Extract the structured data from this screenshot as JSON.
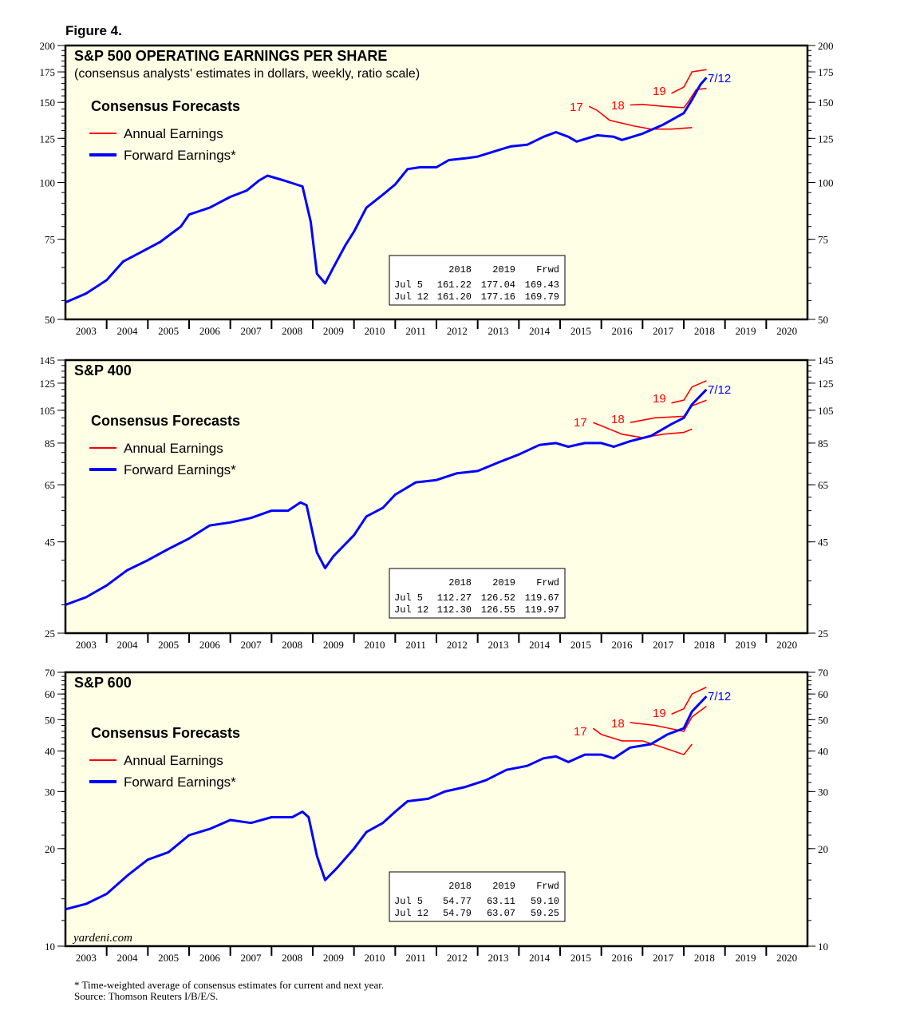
{
  "figure_label": "Figure 4.",
  "watermark": "yardeni.com",
  "footnote": "* Time-weighted average of consensus estimates for current and next year.",
  "source": "Source: Thomson Reuters I/B/E/S.",
  "colors": {
    "annual": "#ff0000",
    "forward": "#0000ff",
    "background": "#ffffe6"
  },
  "chart_data": [
    {
      "type": "line",
      "title": "S&P 500 OPERATING EARNINGS PER SHARE",
      "subtitle": "(consensus analysts' estimates in dollars, weekly, ratio scale)",
      "legend_title": "Consensus Forecasts",
      "legend": [
        "Annual Earnings",
        "Forward Earnings*"
      ],
      "legend_placement": "top-left",
      "y_scale": "log",
      "ylim": [
        50,
        200
      ],
      "yticks": [
        50,
        75,
        100,
        125,
        150,
        175,
        200
      ],
      "xlim": [
        2003,
        2021
      ],
      "xtick_labels": [
        "2003",
        "2004",
        "2005",
        "2006",
        "2007",
        "2008",
        "2009",
        "2010",
        "2011",
        "2012",
        "2013",
        "2014",
        "2015",
        "2016",
        "2017",
        "2018",
        "2019",
        "2020"
      ],
      "annotations": {
        "a17": "17",
        "a18": "18",
        "a19": "19",
        "latest": "7/12"
      },
      "table": {
        "header": [
          "",
          "2018",
          "2019",
          "Frwd"
        ],
        "rows": [
          [
            "Jul  5",
            "161.22",
            "177.04",
            "169.43"
          ],
          [
            "Jul 12",
            "161.20",
            "177.16",
            "169.79"
          ]
        ]
      },
      "forward": [
        [
          2003.0,
          54.5
        ],
        [
          2003.5,
          57
        ],
        [
          2004.0,
          61
        ],
        [
          2004.4,
          67
        ],
        [
          2004.8,
          70
        ],
        [
          2005.3,
          74
        ],
        [
          2005.8,
          80
        ],
        [
          2006.0,
          85
        ],
        [
          2006.5,
          88
        ],
        [
          2007.0,
          93
        ],
        [
          2007.4,
          96
        ],
        [
          2007.7,
          101
        ],
        [
          2007.9,
          103.5
        ],
        [
          2008.3,
          101
        ],
        [
          2008.6,
          99
        ],
        [
          2008.75,
          98
        ],
        [
          2008.95,
          82
        ],
        [
          2009.1,
          63
        ],
        [
          2009.3,
          60
        ],
        [
          2009.5,
          65
        ],
        [
          2009.8,
          73
        ],
        [
          2010.0,
          78
        ],
        [
          2010.3,
          88
        ],
        [
          2010.7,
          94
        ],
        [
          2011.0,
          99
        ],
        [
          2011.3,
          107
        ],
        [
          2011.6,
          108
        ],
        [
          2012.0,
          108
        ],
        [
          2012.3,
          112
        ],
        [
          2012.7,
          113
        ],
        [
          2013.0,
          114
        ],
        [
          2013.4,
          117
        ],
        [
          2013.8,
          120
        ],
        [
          2014.2,
          121
        ],
        [
          2014.6,
          126
        ],
        [
          2014.9,
          129
        ],
        [
          2015.2,
          126
        ],
        [
          2015.4,
          123
        ],
        [
          2015.9,
          127
        ],
        [
          2016.3,
          126
        ],
        [
          2016.5,
          124
        ],
        [
          2017.0,
          128
        ],
        [
          2017.5,
          134
        ],
        [
          2018.0,
          142
        ],
        [
          2018.2,
          152
        ],
        [
          2018.4,
          164
        ],
        [
          2018.55,
          170
        ]
      ],
      "annual_2017": [
        [
          2015.7,
          147
        ],
        [
          2015.9,
          144
        ],
        [
          2016.2,
          137
        ],
        [
          2016.8,
          133
        ],
        [
          2017.2,
          131
        ],
        [
          2017.7,
          131
        ],
        [
          2018.2,
          132
        ]
      ],
      "annual_2018": [
        [
          2016.7,
          148
        ],
        [
          2017.0,
          148.5
        ],
        [
          2017.5,
          147
        ],
        [
          2018.0,
          146
        ],
        [
          2018.1,
          150
        ],
        [
          2018.3,
          160
        ],
        [
          2018.55,
          161
        ]
      ],
      "annual_2019": [
        [
          2017.7,
          157
        ],
        [
          2018.0,
          162
        ],
        [
          2018.2,
          175
        ],
        [
          2018.55,
          177
        ]
      ]
    },
    {
      "type": "line",
      "title": "S&P 400",
      "legend_title": "Consensus Forecasts",
      "legend": [
        "Annual Earnings",
        "Forward Earnings*"
      ],
      "legend_placement": "top-left",
      "y_scale": "log",
      "ylim": [
        25,
        145
      ],
      "yticks": [
        25,
        45,
        65,
        85,
        105,
        125,
        145
      ],
      "xlim": [
        2003,
        2021
      ],
      "xtick_labels": [
        "2003",
        "2004",
        "2005",
        "2006",
        "2007",
        "2008",
        "2009",
        "2010",
        "2011",
        "2012",
        "2013",
        "2014",
        "2015",
        "2016",
        "2017",
        "2018",
        "2019",
        "2020"
      ],
      "annotations": {
        "a17": "17",
        "a18": "18",
        "a19": "19",
        "latest": "7/12"
      },
      "table": {
        "header": [
          "",
          "2018",
          "2019",
          "Frwd"
        ],
        "rows": [
          [
            "Jul  5",
            "112.27",
            "126.52",
            "119.67"
          ],
          [
            "Jul 12",
            "112.30",
            "126.55",
            "119.97"
          ]
        ]
      },
      "forward": [
        [
          2003.0,
          30
        ],
        [
          2003.5,
          31.5
        ],
        [
          2004.0,
          34
        ],
        [
          2004.5,
          37.5
        ],
        [
          2005.0,
          40
        ],
        [
          2005.5,
          43
        ],
        [
          2006.0,
          46
        ],
        [
          2006.5,
          50
        ],
        [
          2007.0,
          51
        ],
        [
          2007.5,
          52.5
        ],
        [
          2008.0,
          55
        ],
        [
          2008.4,
          55
        ],
        [
          2008.7,
          58
        ],
        [
          2008.85,
          57
        ],
        [
          2009.1,
          42
        ],
        [
          2009.3,
          38
        ],
        [
          2009.5,
          41
        ],
        [
          2010.0,
          47
        ],
        [
          2010.3,
          53
        ],
        [
          2010.7,
          56
        ],
        [
          2011.0,
          61
        ],
        [
          2011.5,
          66
        ],
        [
          2012.0,
          67
        ],
        [
          2012.5,
          70
        ],
        [
          2013.0,
          71
        ],
        [
          2013.5,
          75
        ],
        [
          2014.0,
          79
        ],
        [
          2014.5,
          84
        ],
        [
          2014.9,
          85
        ],
        [
          2015.2,
          83
        ],
        [
          2015.6,
          85
        ],
        [
          2016.0,
          85
        ],
        [
          2016.3,
          83
        ],
        [
          2016.7,
          86
        ],
        [
          2017.2,
          89
        ],
        [
          2017.7,
          96
        ],
        [
          2018.0,
          100
        ],
        [
          2018.2,
          109
        ],
        [
          2018.55,
          120
        ]
      ],
      "annual_2017": [
        [
          2015.8,
          97
        ],
        [
          2016.0,
          95
        ],
        [
          2016.5,
          90
        ],
        [
          2017.0,
          88
        ],
        [
          2017.5,
          90
        ],
        [
          2018.0,
          91
        ],
        [
          2018.2,
          93
        ]
      ],
      "annual_2018": [
        [
          2016.7,
          97
        ],
        [
          2017.3,
          100
        ],
        [
          2018.0,
          101
        ],
        [
          2018.2,
          108
        ],
        [
          2018.55,
          112
        ]
      ],
      "annual_2019": [
        [
          2017.7,
          110
        ],
        [
          2018.0,
          112
        ],
        [
          2018.2,
          122
        ],
        [
          2018.55,
          127
        ]
      ]
    },
    {
      "type": "line",
      "title": "S&P 600",
      "legend_title": "Consensus Forecasts",
      "legend": [
        "Annual Earnings",
        "Forward Earnings*"
      ],
      "legend_placement": "top-left",
      "y_scale": "log",
      "ylim": [
        10,
        70
      ],
      "yticks": [
        10,
        20,
        30,
        40,
        50,
        60,
        70
      ],
      "xlim": [
        2003,
        2021
      ],
      "xtick_labels": [
        "2003",
        "2004",
        "2005",
        "2006",
        "2007",
        "2008",
        "2009",
        "2010",
        "2011",
        "2012",
        "2013",
        "2014",
        "2015",
        "2016",
        "2017",
        "2018",
        "2019",
        "2020"
      ],
      "annotations": {
        "a17": "17",
        "a18": "18",
        "a19": "19",
        "latest": "7/12"
      },
      "table": {
        "header": [
          "",
          "2018",
          "2019",
          "Frwd"
        ],
        "rows": [
          [
            "Jul  5",
            "54.77",
            "63.11",
            "59.10"
          ],
          [
            "Jul 12",
            "54.79",
            "63.07",
            "59.25"
          ]
        ]
      },
      "forward": [
        [
          2003.0,
          13
        ],
        [
          2003.5,
          13.5
        ],
        [
          2004.0,
          14.5
        ],
        [
          2004.5,
          16.5
        ],
        [
          2005.0,
          18.5
        ],
        [
          2005.5,
          19.5
        ],
        [
          2006.0,
          22
        ],
        [
          2006.5,
          23
        ],
        [
          2007.0,
          24.5
        ],
        [
          2007.5,
          24
        ],
        [
          2008.0,
          25
        ],
        [
          2008.5,
          25
        ],
        [
          2008.75,
          26
        ],
        [
          2008.9,
          25
        ],
        [
          2009.1,
          19
        ],
        [
          2009.3,
          16
        ],
        [
          2009.6,
          17.5
        ],
        [
          2010.0,
          20
        ],
        [
          2010.3,
          22.5
        ],
        [
          2010.7,
          24
        ],
        [
          2011.0,
          26
        ],
        [
          2011.3,
          28
        ],
        [
          2011.8,
          28.5
        ],
        [
          2012.2,
          30
        ],
        [
          2012.7,
          31
        ],
        [
          2013.2,
          32.5
        ],
        [
          2013.7,
          35
        ],
        [
          2014.2,
          36
        ],
        [
          2014.6,
          38
        ],
        [
          2014.9,
          38.5
        ],
        [
          2015.2,
          37
        ],
        [
          2015.6,
          39
        ],
        [
          2016.0,
          39
        ],
        [
          2016.3,
          38
        ],
        [
          2016.7,
          41
        ],
        [
          2017.2,
          42
        ],
        [
          2017.6,
          45
        ],
        [
          2018.0,
          47
        ],
        [
          2018.2,
          53
        ],
        [
          2018.55,
          59
        ]
      ],
      "annual_2017": [
        [
          2015.8,
          47
        ],
        [
          2016.0,
          45
        ],
        [
          2016.5,
          43
        ],
        [
          2017.0,
          43
        ],
        [
          2017.5,
          41
        ],
        [
          2018.0,
          39
        ],
        [
          2018.2,
          42
        ]
      ],
      "annual_2018": [
        [
          2016.7,
          49
        ],
        [
          2017.3,
          48
        ],
        [
          2018.0,
          46
        ],
        [
          2018.2,
          51
        ],
        [
          2018.55,
          55
        ]
      ],
      "annual_2019": [
        [
          2017.7,
          52
        ],
        [
          2018.0,
          54
        ],
        [
          2018.2,
          60
        ],
        [
          2018.55,
          63
        ]
      ]
    }
  ]
}
